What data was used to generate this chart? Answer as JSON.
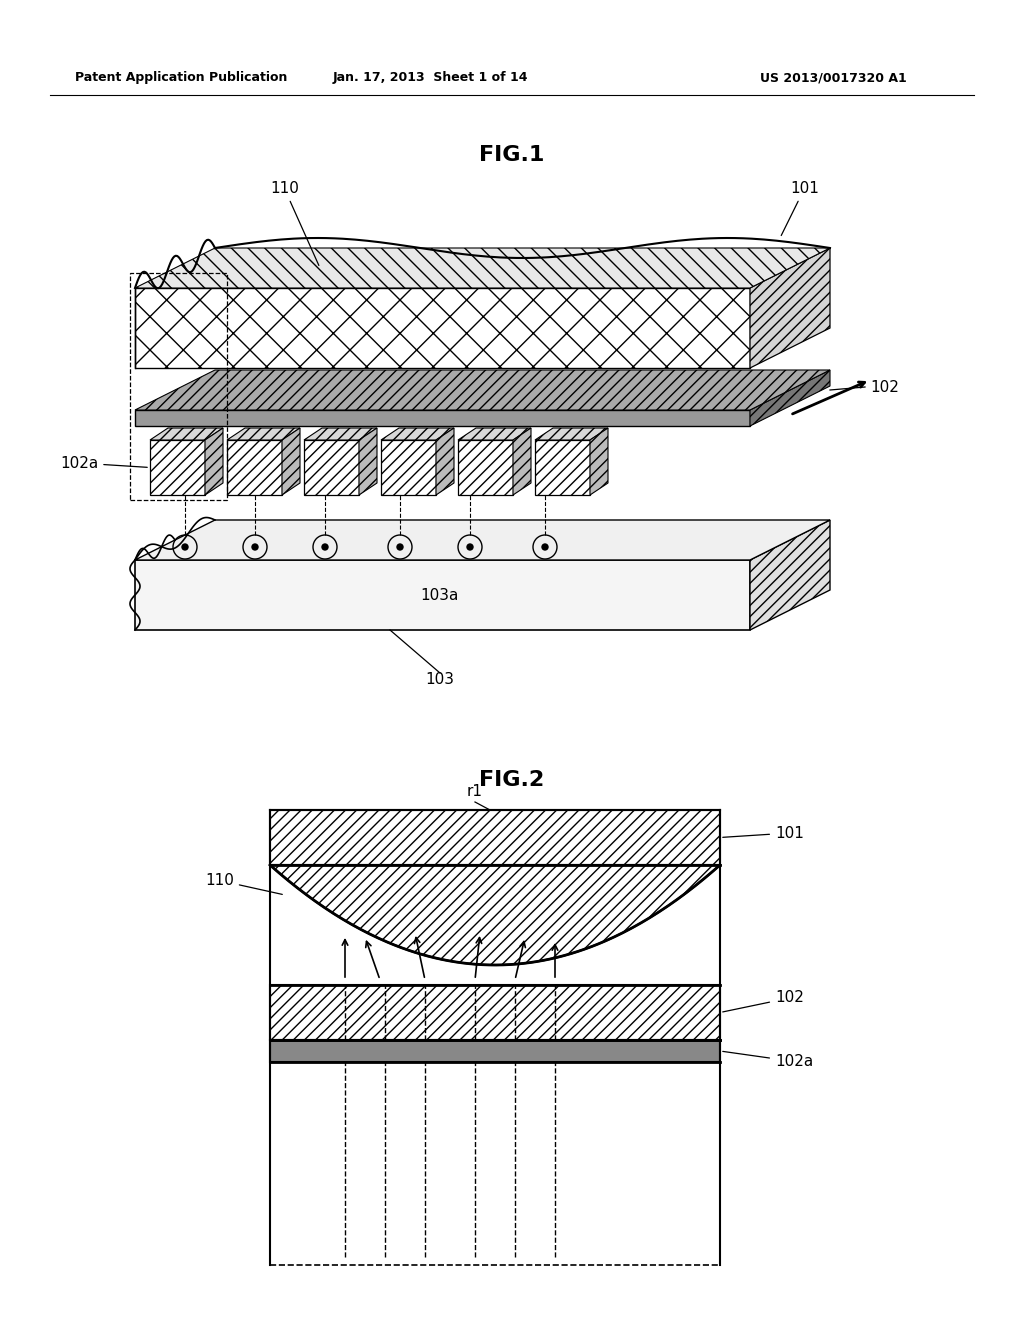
{
  "bg_color": "#ffffff",
  "header_left": "Patent Application Publication",
  "header_mid": "Jan. 17, 2013  Sheet 1 of 14",
  "header_right": "US 2013/0017320 A1",
  "fig1_title": "FIG.1",
  "fig2_title": "FIG.2"
}
